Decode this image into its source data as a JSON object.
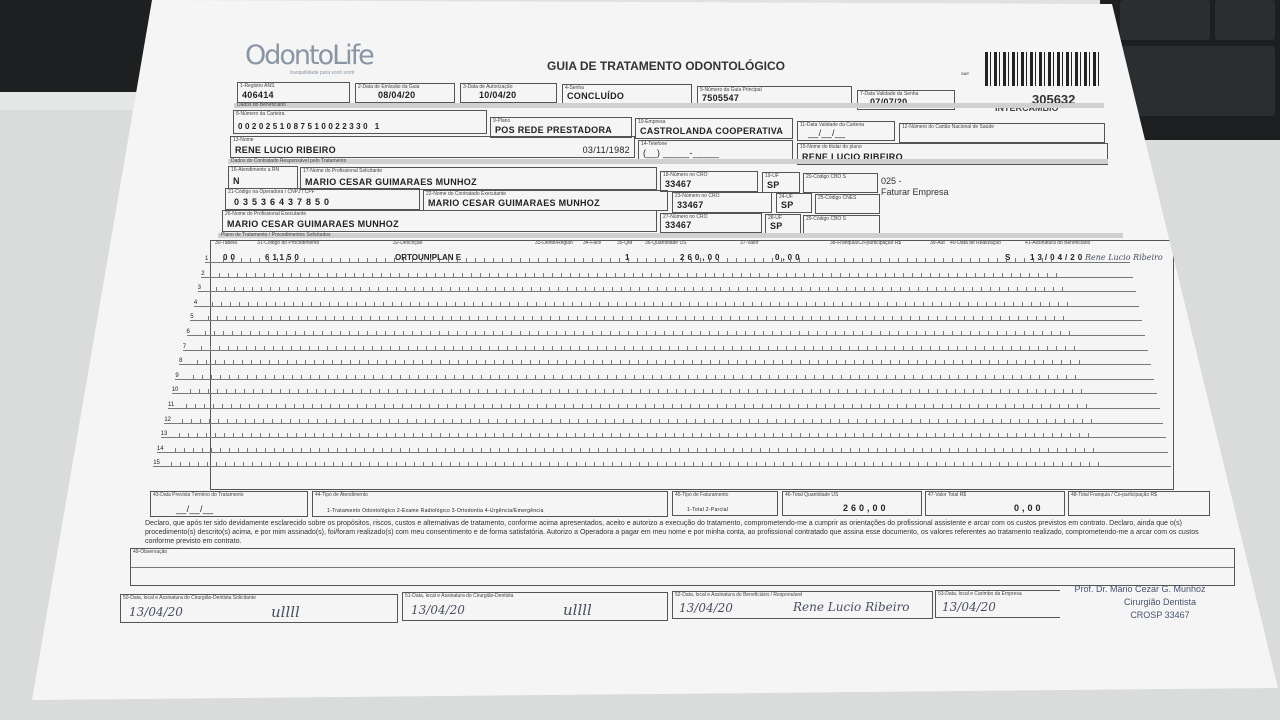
{
  "logo": {
    "brand": "OdontoLife",
    "tagline": "tranquilidade para você sorrir"
  },
  "title": "GUIA DE TRATAMENTO ODONTOLÓGICO",
  "barcode_code": "SAP",
  "guide_number": "305632",
  "exchange": "INTERCÂMBIO",
  "header": [
    {
      "label": "1-Registro ANS",
      "value": "406414"
    },
    {
      "label": "2-Data de Emissão da Guia",
      "value": "08/04/20"
    },
    {
      "label": "3-Data de Autorização",
      "value": "10/04/20"
    },
    {
      "label": "4-Senha",
      "value": "CONCLUÍDO"
    },
    {
      "label": "5-Número da Guia Principal",
      "value": "7505547"
    },
    {
      "label": "7-Data Validade da Senha",
      "value": "07/07/20"
    }
  ],
  "sections": {
    "beneficiary": "Dados do Beneficiário",
    "contractor": "Dados do Contratado Responsável pelo Tratamento",
    "plan": "Plano de Tratamento / Procedimentos Solicitados"
  },
  "beneficiary": {
    "card": {
      "label": "8-Número da Carteira",
      "value": "0020251087510022330 1"
    },
    "plan": {
      "label": "9-Plano",
      "value": "POS REDE PRESTADORA"
    },
    "company": {
      "label": "10-Empresa",
      "value": "CASTROLANDA  COOPERATIVA"
    },
    "card_validity": {
      "label": "11-Data Validade da Carteira",
      "value": "__/__/__"
    },
    "cns": {
      "label": "12-Número do Cartão Nacional de Saúde",
      "value": ""
    },
    "name": {
      "label": "13-Nome",
      "value": "RENE LUCIO RIBEIRO"
    },
    "birth": "03/11/1982",
    "phone": {
      "label": "14-Telefone",
      "value": "(__) _____-_____"
    },
    "holder": {
      "label": "15-Nome do titular do plano",
      "value": "RENE LUCIO RIBEIRO"
    }
  },
  "contractor": {
    "rn": {
      "label": "16-Atendimento a RN",
      "value": "N"
    },
    "requester": {
      "label": "17-Nome do Profissional Solicitante",
      "value": "MARIO CESAR GUIMARAES MUNHOZ"
    },
    "cro1": {
      "label": "18-Número no CRO",
      "value": "33467"
    },
    "uf1": {
      "label": "19-UF",
      "value": "SP"
    },
    "cbo1": {
      "label": "20-Código CBO S",
      "value": ""
    },
    "code": {
      "label": "21-Código na Operadora / CNPJ / CPF",
      "value": "03536437850"
    },
    "executor": {
      "label": "22-Nome do Contratado Executante",
      "value": "MARIO CESAR GUIMARAES MUNHOZ"
    },
    "cro2": {
      "label": "23-Número no CRO",
      "value": "33467"
    },
    "uf2": {
      "label": "24-UF",
      "value": "SP"
    },
    "cnes": {
      "label": "25-Código CNES",
      "value": ""
    },
    "professional": {
      "label": "26-Nome do Profissional Executante",
      "value": "MARIO CESAR GUIMARAES MUNHOZ"
    },
    "cro3": {
      "label": "27-Número no CRO",
      "value": "33467"
    },
    "uf3": {
      "label": "28-UF",
      "value": "SP"
    },
    "cbo3": {
      "label": "29-Código CBO S",
      "value": ""
    },
    "billing_note_1": "025 -",
    "billing_note_2": "Faturar Empresa"
  },
  "procedures": {
    "columns": [
      "30-Tabela",
      "31-Código do Procedimento",
      "32-Descrição",
      "33-Dente/Região",
      "34-Face",
      "35-Qtd",
      "36-Quantidade US",
      "37-Valor",
      "38-Franquia/Co-participação R$",
      "39-Aut",
      "40-Data de Realização",
      "41-Assinatura do Beneficiário"
    ],
    "rows": [
      {
        "n": "1",
        "table": "00",
        "code": "61150",
        "desc": "ORTOUNIPLAN E",
        "tooth": "",
        "face": "",
        "qty": "1",
        "us": "260,00",
        "value": "0,00",
        "copay": "",
        "aut": "S",
        "date": "13/04/20",
        "sign": "Rene Lucio Ribeiro"
      },
      {
        "n": "2"
      },
      {
        "n": "3"
      },
      {
        "n": "4"
      },
      {
        "n": "5"
      },
      {
        "n": "6"
      },
      {
        "n": "7"
      },
      {
        "n": "8"
      },
      {
        "n": "9"
      },
      {
        "n": "10"
      },
      {
        "n": "11"
      },
      {
        "n": "12"
      },
      {
        "n": "13"
      },
      {
        "n": "14"
      },
      {
        "n": "15"
      }
    ]
  },
  "footer": {
    "end_date": {
      "label": "43-Data Prevista Término do Tratamento",
      "value": "__/__/__"
    },
    "care_type": {
      "label": "44-Tipo de Atendimento",
      "value": "1-Tratamento Odontológico  2-Exame Radiológico  3-Ortodontia  4-Urgência/Emergência"
    },
    "billing_type": {
      "label": "45-Tipo de Faturamento",
      "value": "1-Total  2-Parcial"
    },
    "total_us": {
      "label": "46-Total Quantidade US",
      "value": "260,00"
    },
    "total_value": {
      "label": "47-Valor Total R$",
      "value": "0,00"
    },
    "total_copay": {
      "label": "48-Total Franquia / Co-participação R$",
      "value": ""
    }
  },
  "declaration": "Declaro, que após ter sido devidamente esclarecido sobre os propósitos, riscos, custos e alternativas de tratamento, conforme acima apresentados, aceito e autorizo a execução do tratamento, comprometendo-me a cumprir as orientações do profissional assistente e arcar com os custos previstos em contrato. Declaro, ainda que o(s) procedimento(s) descrito(s) acima, e por mim assinado(s), foi/foram realizado(s) com meu consentimento e de forma satisfatória. Autorizo a Operadora a pagar em meu nome e por minha conta, ao profissional contratado que assina esse documento, os valores referentes ao tratamento realizado, comprometendo-me a arcar com os custos conforme previsto em contrato.",
  "observation_label": "49-Observação",
  "signatures": [
    {
      "label": "50-Data, local e Assinatura do Cirurgião-Dentista Solicitante",
      "date": "13/04/20",
      "sign": "ullll"
    },
    {
      "label": "51-Data, local e Assinatura do Cirurgião-Dentista",
      "date": "13/04/20",
      "sign": "ullll"
    },
    {
      "label": "52-Data, local e Assinatura do Beneficiário / Responsável",
      "date": "13/04/20",
      "sign": "Rene Lucio Ribeiro"
    },
    {
      "label": "53-Data, local e Carimbo da Empresa",
      "date": "13/04/20",
      "sign": ""
    }
  ],
  "stamp": {
    "line1": "Prof. Dr. Mário Cezar G. Munhoz",
    "line2": "Cirurgião Dentista",
    "line3": "CROSP 33467"
  }
}
